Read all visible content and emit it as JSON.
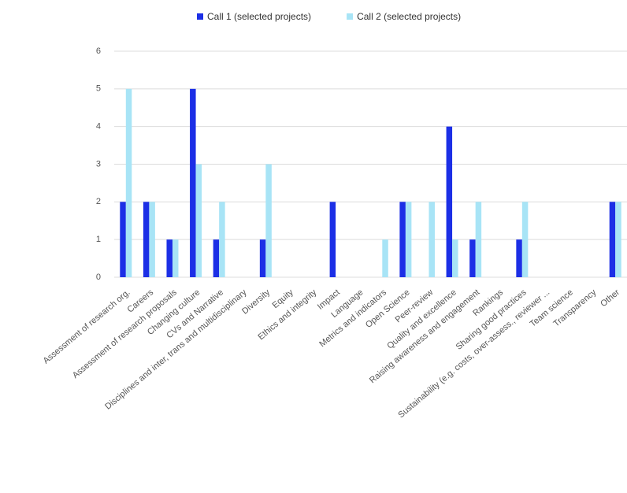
{
  "chart_data": {
    "type": "bar",
    "categories": [
      "Assessment of research org.",
      "Careers",
      "Assessment of research proposals",
      "Changing culture",
      "CVs and Narrative",
      "Disciplines and inter, trans and multidisciplinary",
      "Diversity",
      "Equity",
      "Ethics and integrity",
      "Impact",
      "Language",
      "Metrics and indicators",
      "Open Science",
      "Peer-review",
      "Quality and excellence",
      "Raising awareness and engagement",
      "Rankings",
      "Sharing good practices",
      "Sustainability (e.g. costs, over-assess., reviewer ...",
      "Team science",
      "Transparency",
      "Other"
    ],
    "series": [
      {
        "name": "Call 1 (selected projects)",
        "color": "#1c2fe6",
        "values": [
          2,
          2,
          1,
          5,
          1,
          0,
          1,
          0,
          0,
          2,
          0,
          0,
          2,
          0,
          4,
          1,
          0,
          1,
          0,
          0,
          0,
          2
        ]
      },
      {
        "name": "Call 2 (selected projects)",
        "color": "#a8e4f6",
        "values": [
          5,
          2,
          1,
          3,
          2,
          0,
          3,
          0,
          0,
          0,
          0,
          1,
          2,
          2,
          1,
          2,
          0,
          2,
          0,
          0,
          0,
          2
        ]
      }
    ],
    "ylim": [
      0,
      6
    ],
    "yticks": [
      0,
      1,
      2,
      3,
      4,
      5,
      6
    ],
    "grid": true,
    "legend": "top"
  }
}
